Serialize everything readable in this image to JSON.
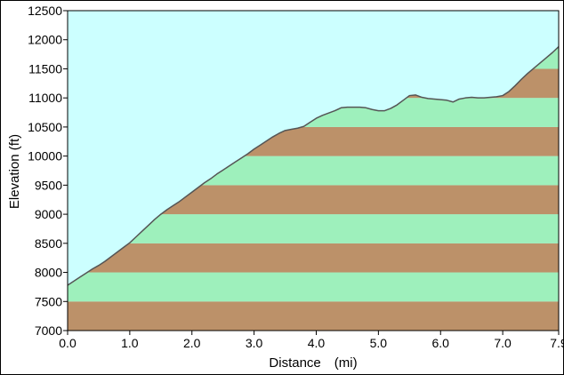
{
  "chart_data": {
    "type": "area",
    "xlabel": "Distance　(mi)",
    "ylabel": "Elevation (ft)",
    "xlim": [
      0.0,
      7.9
    ],
    "ylim": [
      7000,
      12500
    ],
    "x_ticks": [
      0.0,
      1.0,
      2.0,
      3.0,
      4.0,
      5.0,
      6.0,
      7.0,
      7.9
    ],
    "x_tick_labels": [
      "0.0",
      "1.0",
      "2.0",
      "3.0",
      "4.0",
      "5.0",
      "6.0",
      "7.0",
      "7.9"
    ],
    "y_ticks": [
      7000,
      7500,
      8000,
      8500,
      9000,
      9500,
      10000,
      10500,
      11000,
      11500,
      12000,
      12500
    ],
    "y_tick_labels": [
      "7000",
      "7500",
      "8000",
      "8500",
      "9000",
      "9500",
      "10000",
      "10500",
      "11000",
      "11500",
      "12000",
      "12500"
    ],
    "grid": false,
    "legend": "none",
    "colors": {
      "sky": "#ccffff",
      "band_brown": "#bc9169",
      "band_green": "#9ef0bc",
      "profile_line": "#555555",
      "frame": "#000000"
    },
    "series": [
      {
        "x": [
          0.0,
          0.1,
          0.2,
          0.3,
          0.4,
          0.5,
          0.6,
          0.7,
          0.8,
          0.9,
          1.0,
          1.1,
          1.2,
          1.3,
          1.4,
          1.5,
          1.6,
          1.7,
          1.8,
          1.9,
          2.0,
          2.1,
          2.2,
          2.3,
          2.4,
          2.5,
          2.6,
          2.7,
          2.8,
          2.9,
          3.0,
          3.1,
          3.2,
          3.3,
          3.4,
          3.5,
          3.6,
          3.7,
          3.8,
          3.9,
          4.0,
          4.1,
          4.2,
          4.3,
          4.4,
          4.5,
          4.6,
          4.7,
          4.8,
          4.9,
          5.0,
          5.1,
          5.2,
          5.3,
          5.4,
          5.5,
          5.6,
          5.7,
          5.8,
          5.9,
          6.0,
          6.1,
          6.2,
          6.3,
          6.4,
          6.5,
          6.6,
          6.7,
          6.8,
          6.9,
          7.0,
          7.1,
          7.2,
          7.3,
          7.4,
          7.5,
          7.6,
          7.7,
          7.8,
          7.9
        ],
        "values": [
          7780,
          7850,
          7920,
          7990,
          8060,
          8120,
          8190,
          8270,
          8350,
          8430,
          8510,
          8610,
          8710,
          8810,
          8910,
          9000,
          9080,
          9150,
          9220,
          9300,
          9380,
          9460,
          9540,
          9610,
          9690,
          9760,
          9830,
          9900,
          9970,
          10040,
          10120,
          10190,
          10260,
          10330,
          10390,
          10440,
          10460,
          10480,
          10510,
          10580,
          10650,
          10700,
          10740,
          10780,
          10830,
          10840,
          10840,
          10840,
          10830,
          10800,
          10780,
          10780,
          10820,
          10880,
          10960,
          11040,
          11050,
          11010,
          10990,
          10980,
          10970,
          10960,
          10930,
          10980,
          11000,
          11010,
          11000,
          11000,
          11010,
          11020,
          11040,
          11110,
          11210,
          11320,
          11420,
          11510,
          11600,
          11690,
          11780,
          11880
        ]
      }
    ]
  }
}
